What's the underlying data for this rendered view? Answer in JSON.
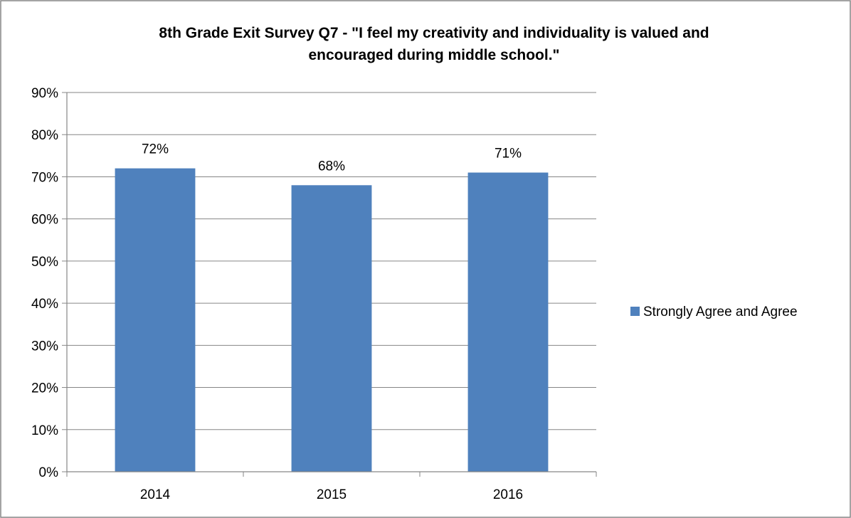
{
  "chart_data": {
    "type": "bar",
    "title_lines": [
      "8th Grade Exit Survey Q7 - \"I feel my creativity and individuality is valued and",
      "encouraged during middle school.\""
    ],
    "categories": [
      "2014",
      "2015",
      "2016"
    ],
    "series": [
      {
        "name": "Strongly Agree and Agree",
        "values": [
          0.72,
          0.68,
          0.71
        ],
        "color": "#4F81BD"
      }
    ],
    "data_labels": [
      "72%",
      "68%",
      "71%"
    ],
    "ylim": [
      0,
      0.9
    ],
    "y_ticks": [
      0,
      0.1,
      0.2,
      0.3,
      0.4,
      0.5,
      0.6,
      0.7,
      0.8,
      0.9
    ],
    "y_tick_labels": [
      "0%",
      "10%",
      "20%",
      "30%",
      "40%",
      "50%",
      "60%",
      "70%",
      "80%",
      "90%"
    ],
    "grid": true,
    "legend_position": "right",
    "gridline_color": "#868686",
    "border_color": "#868686"
  }
}
